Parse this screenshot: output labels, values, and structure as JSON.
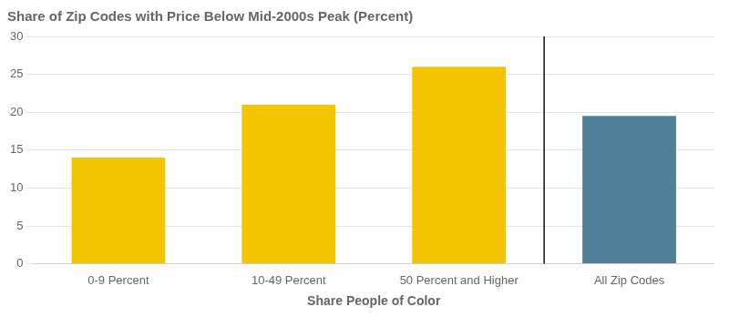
{
  "chart_data": {
    "type": "bar",
    "title": "Share of Zip Codes with Price Below Mid-2000s Peak (Percent)",
    "xlabel": "Share People of Color",
    "categories": [
      "0-9 Percent",
      "10-49 Percent",
      "50 Percent and Higher",
      "All Zip Codes"
    ],
    "values": [
      14,
      21,
      26,
      19.5
    ],
    "colors": [
      "#F5C400",
      "#F5C400",
      "#F5C400",
      "#4E8098"
    ],
    "ylim": [
      0,
      30
    ],
    "yticks": [
      0,
      5,
      10,
      15,
      20,
      25,
      30
    ],
    "grid": true
  }
}
